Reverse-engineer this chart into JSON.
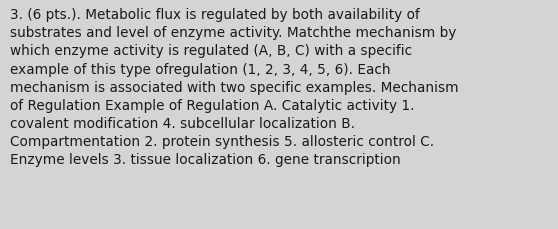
{
  "lines": [
    "3. (6 pts.). Metabolic flux is regulated by both availability of",
    "substrates and level of enzyme activity. Matchthe mechanism by",
    "which enzyme activity is regulated (A, B, C) with a specific",
    "example of this type ofregulation (1, 2, 3, 4, 5, 6). Each",
    "mechanism is associated with two specific examples. Mechanism",
    "of Regulation Example of Regulation A. Catalytic activity 1.",
    "covalent modification 4. subcellular localization B.",
    "Compartmentation 2. protein synthesis 5. allosteric control C.",
    "Enzyme levels 3. tissue localization 6. gene transcription"
  ],
  "bg_color": "#d4d4d4",
  "text_color": "#1a1a1a",
  "font_size": 9.8,
  "fig_width": 5.58,
  "fig_height": 2.3,
  "dpi": 100,
  "linespacing": 1.38
}
